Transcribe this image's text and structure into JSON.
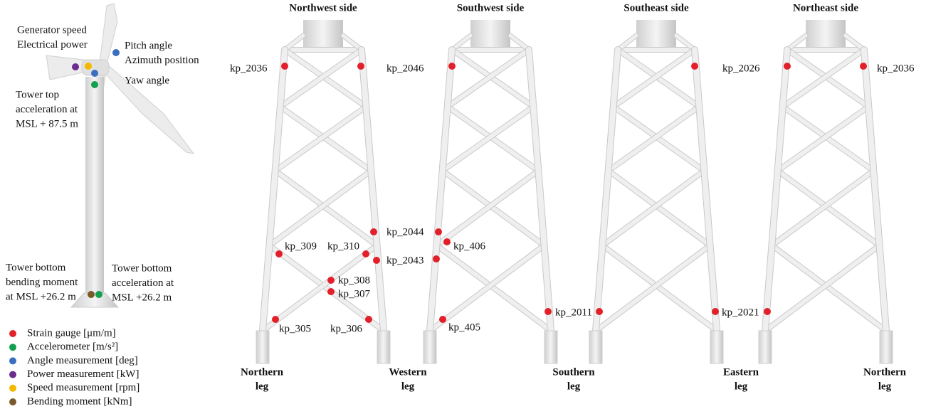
{
  "turbine": {
    "callouts": [
      [
        "Generator speed",
        "Electrical power"
      ],
      [
        "Pitch angle",
        "Azimuth position"
      ],
      [
        "Yaw angle"
      ],
      [
        "Tower top",
        "acceleration at",
        "MSL + 87.5 m"
      ],
      [
        "Tower bottom",
        "bending moment",
        "at MSL +26.2 m"
      ],
      [
        "Tower bottom",
        "acceleration at",
        "MSL +26.2 m"
      ]
    ]
  },
  "legend": [
    {
      "label": "Strain gauge [μm/m]",
      "color": "#e3202a"
    },
    {
      "label": "Accelerometer [m/s²]",
      "color": "#12a04e"
    },
    {
      "label": "Angle measurement [deg]",
      "color": "#3a6fc0"
    },
    {
      "label": "Power measurement [kW]",
      "color": "#6b2b8f"
    },
    {
      "label": "Speed measurement [rpm]",
      "color": "#f5b800"
    },
    {
      "label": "Bending moment [kNm]",
      "color": "#7a5a2a"
    }
  ],
  "panels": [
    {
      "title": "Northwest side",
      "sensors": [
        "kp_2036",
        "kp_2046",
        "kp_309",
        "kp_310",
        "kp_308",
        "kp_307",
        "kp_305",
        "kp_306",
        "kp_2044",
        "kp_2043"
      ]
    },
    {
      "title": "Southwest side",
      "sensors": [
        "kp_406",
        "kp_405",
        "kp_2011"
      ]
    },
    {
      "title": "Southeast side",
      "sensors": [
        "kp_2026",
        "kp_2021"
      ]
    },
    {
      "title": "Northeast side",
      "sensors": [
        "kp_2036"
      ]
    }
  ],
  "legs": [
    [
      "Northern",
      "leg"
    ],
    [
      "Western",
      "leg"
    ],
    [
      "Southern",
      "leg"
    ],
    [
      "Eastern",
      "leg"
    ],
    [
      "Northern",
      "leg"
    ]
  ]
}
